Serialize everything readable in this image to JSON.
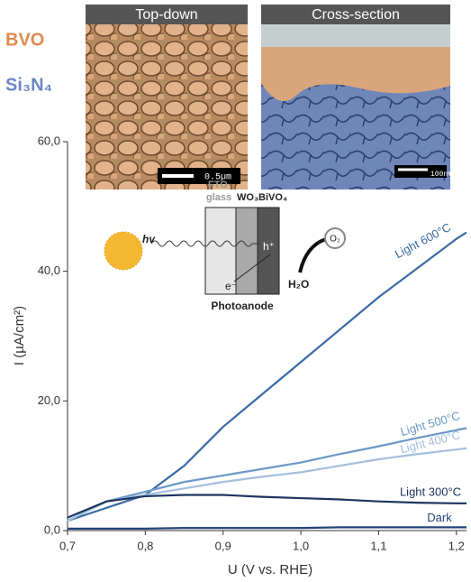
{
  "labels": [
    "BVO",
    "Si₃N₄"
  ],
  "images": {
    "left_title": "Top-down",
    "right_title": "Cross-section",
    "left_scale": "0.5µm",
    "right_scale": "100nm"
  },
  "schematic": {
    "fto": "FTO",
    "glass": "glass",
    "wo3": "WO₃",
    "bivo4": "BiVO₄",
    "hv": "hv",
    "hole": "h⁺",
    "electron": "e⁻",
    "o2": "O₂",
    "h2o": "H₂O",
    "caption": "Photoanode"
  },
  "chart_data": {
    "type": "line",
    "x_label": "U (V vs. RHE)",
    "y_label": "I (µA/cm²)",
    "x": [
      0.7,
      0.75,
      0.8,
      0.85,
      0.9,
      0.95,
      1.0,
      1.05,
      1.1,
      1.15,
      1.2,
      1.213
    ],
    "xlim": [
      0.7,
      1.213
    ],
    "ylim": [
      0,
      60
    ],
    "xticks": [
      {
        "value": 0.7,
        "label": "0,7"
      },
      {
        "value": 0.8,
        "label": "0,8"
      },
      {
        "value": 0.9,
        "label": "0,9"
      },
      {
        "value": 1.0,
        "label": "1,0"
      },
      {
        "value": 1.1,
        "label": "1,1"
      },
      {
        "value": 1.2,
        "label": "1,2"
      }
    ],
    "yticks": [
      {
        "value": 0,
        "label": "0,0"
      },
      {
        "value": 20,
        "label": "20,0"
      },
      {
        "value": 40,
        "label": "40,0"
      },
      {
        "value": 60,
        "label": "60,0"
      }
    ],
    "series": [
      {
        "name": "Light 600°C",
        "color": "#3a6aa6",
        "values": [
          1.5,
          3.5,
          5.5,
          10,
          16,
          21,
          26,
          31,
          36,
          40.5,
          45,
          46
        ]
      },
      {
        "name": "Light 500°C",
        "color": "#6b98c8",
        "values": [
          1.5,
          4.5,
          6,
          7.5,
          8.5,
          9.5,
          10.5,
          11.8,
          13,
          14.3,
          15.5,
          15.8
        ]
      },
      {
        "name": "Light 400°C",
        "color": "#a3c0dc",
        "values": [
          1.5,
          4.5,
          5.5,
          6.5,
          7.5,
          8.3,
          9,
          10,
          11,
          11.8,
          12.5,
          12.7
        ]
      },
      {
        "name": "Light 300°C",
        "color": "#1c3560",
        "values": [
          2,
          4.5,
          5.3,
          5.5,
          5.5,
          5.2,
          5,
          4.8,
          4.5,
          4.3,
          4.2,
          4.2
        ]
      },
      {
        "name": "Dark",
        "color": "#24457a",
        "values": [
          0.3,
          0.3,
          0.3,
          0.4,
          0.4,
          0.4,
          0.4,
          0.5,
          0.5,
          0.5,
          0.5,
          0.5
        ]
      }
    ]
  }
}
